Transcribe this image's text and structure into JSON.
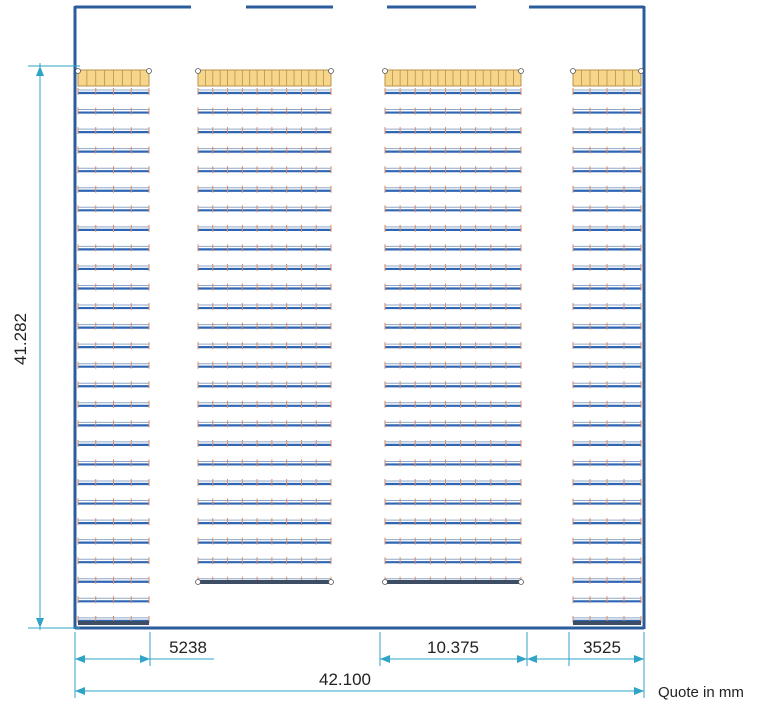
{
  "dimensions": {
    "height_label": "41.282",
    "aisle_label": "5238",
    "block_label": "10.375",
    "end_block_label": "3525",
    "total_width_label": "42.100"
  },
  "units_note": "Quote in mm",
  "colors": {
    "wall": "#2b5d9c",
    "beam": "#2f66b3",
    "rack_line": "#8fa7c4",
    "upright_post": "#d98a6a",
    "top_pallet_fill": "#f5d68a",
    "top_pallet_stroke": "#b9924a",
    "dimension_line": "#2fa3c8",
    "bottom_end": "#3d4d63"
  },
  "layout_info": {
    "rack_levels": 28
  }
}
